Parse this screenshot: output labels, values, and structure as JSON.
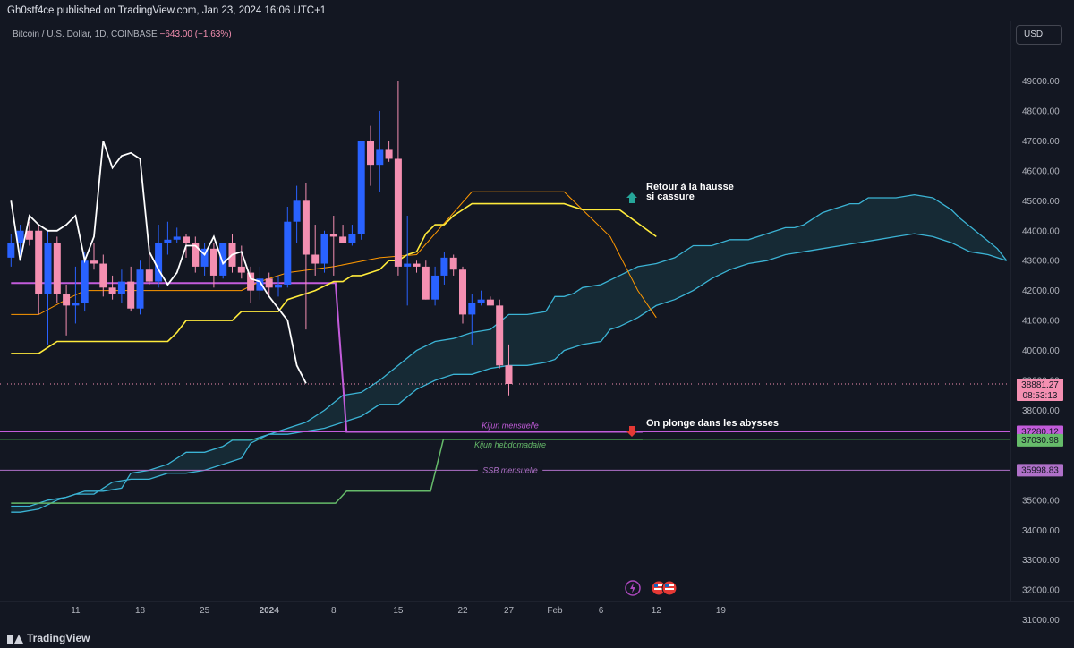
{
  "header": {
    "publisher": "Gh0stf4ce published on TradingView.com, Jan 23, 2024 16:06 UTC+1",
    "symbol": "Bitcoin / U.S. Dollar, 1D, COINBASE",
    "change": "−643.00 (−1.63%)"
  },
  "footer": {
    "logo": "TradingView"
  },
  "toolbar": {
    "currency": "USD"
  },
  "colors": {
    "background": "#131722",
    "up": "#2962ff",
    "down": "#f48fb1",
    "tenkan": "#ffeb3b",
    "kijun_orange": "#ff9800",
    "lagging": "#ffffff",
    "cloud_edge": "#3bb3d4",
    "monthly_kijun": "#c35cdb",
    "weekly_kijun": "#66bb6a",
    "ssb": "#b071c9"
  },
  "chart_data": {
    "type": "candlestick",
    "ylim": [
      30600,
      49400
    ],
    "y_ticks": [
      "49000.00",
      "48000.00",
      "47000.00",
      "46000.00",
      "45000.00",
      "44000.00",
      "43000.00",
      "42000.00",
      "41000.00",
      "40000.00",
      "39000.00",
      "38000.00",
      "37000.00",
      "36000.00",
      "35000.00",
      "34000.00",
      "33000.00",
      "32000.00",
      "31000.00"
    ],
    "x_ticks": [
      {
        "i": 7,
        "label": "11"
      },
      {
        "i": 14,
        "label": "18"
      },
      {
        "i": 21,
        "label": "25"
      },
      {
        "i": 28,
        "label": "2024"
      },
      {
        "i": 35,
        "label": "8"
      },
      {
        "i": 42,
        "label": "15"
      },
      {
        "i": 49,
        "label": "22"
      },
      {
        "i": 54,
        "label": "27"
      },
      {
        "i": 59,
        "label": "Feb"
      },
      {
        "i": 64,
        "label": "6"
      },
      {
        "i": 70,
        "label": "12"
      },
      {
        "i": 77,
        "label": "19"
      }
    ],
    "candles": [
      {
        "o": 43100,
        "h": 43900,
        "l": 42800,
        "c": 43600
      },
      {
        "o": 43600,
        "h": 44200,
        "l": 43000,
        "c": 44000
      },
      {
        "o": 44000,
        "h": 44300,
        "l": 43500,
        "c": 43700
      },
      {
        "o": 44000,
        "h": 44200,
        "l": 41200,
        "c": 41900
      },
      {
        "o": 41900,
        "h": 44000,
        "l": 40200,
        "c": 43600
      },
      {
        "o": 43600,
        "h": 43800,
        "l": 41600,
        "c": 41900
      },
      {
        "o": 41900,
        "h": 42200,
        "l": 40500,
        "c": 41500
      },
      {
        "o": 41500,
        "h": 42800,
        "l": 40900,
        "c": 41600
      },
      {
        "o": 41600,
        "h": 43300,
        "l": 41300,
        "c": 43000
      },
      {
        "o": 43000,
        "h": 43600,
        "l": 42700,
        "c": 42900
      },
      {
        "o": 42900,
        "h": 43200,
        "l": 41800,
        "c": 42100
      },
      {
        "o": 42100,
        "h": 42500,
        "l": 41700,
        "c": 41900
      },
      {
        "o": 41900,
        "h": 42700,
        "l": 41600,
        "c": 42300
      },
      {
        "o": 42300,
        "h": 42800,
        "l": 41300,
        "c": 41400
      },
      {
        "o": 41400,
        "h": 43000,
        "l": 41200,
        "c": 42700
      },
      {
        "o": 42700,
        "h": 43500,
        "l": 42200,
        "c": 42300
      },
      {
        "o": 42300,
        "h": 44200,
        "l": 42100,
        "c": 43600
      },
      {
        "o": 43600,
        "h": 44300,
        "l": 43200,
        "c": 43700
      },
      {
        "o": 43700,
        "h": 44100,
        "l": 43600,
        "c": 43800
      },
      {
        "o": 43800,
        "h": 43900,
        "l": 43100,
        "c": 43600
      },
      {
        "o": 43600,
        "h": 43800,
        "l": 42600,
        "c": 42800
      },
      {
        "o": 42800,
        "h": 43600,
        "l": 42500,
        "c": 43400
      },
      {
        "o": 43400,
        "h": 43600,
        "l": 42100,
        "c": 42500
      },
      {
        "o": 42500,
        "h": 43600,
        "l": 42400,
        "c": 43600
      },
      {
        "o": 43600,
        "h": 43900,
        "l": 42600,
        "c": 42800
      },
      {
        "o": 42800,
        "h": 43500,
        "l": 42400,
        "c": 42600
      },
      {
        "o": 42600,
        "h": 42800,
        "l": 41600,
        "c": 42000
      },
      {
        "o": 42000,
        "h": 42800,
        "l": 41700,
        "c": 42400
      },
      {
        "o": 42400,
        "h": 42600,
        "l": 41800,
        "c": 42100
      },
      {
        "o": 42100,
        "h": 42500,
        "l": 41800,
        "c": 42200
      },
      {
        "o": 42200,
        "h": 44800,
        "l": 42100,
        "c": 44300
      },
      {
        "o": 44300,
        "h": 45500,
        "l": 43600,
        "c": 45000
      },
      {
        "o": 45000,
        "h": 45600,
        "l": 40700,
        "c": 43200
      },
      {
        "o": 43200,
        "h": 44200,
        "l": 42500,
        "c": 42900
      },
      {
        "o": 42900,
        "h": 44000,
        "l": 42600,
        "c": 43900
      },
      {
        "o": 43900,
        "h": 44500,
        "l": 42500,
        "c": 43800
      },
      {
        "o": 43800,
        "h": 44200,
        "l": 43600,
        "c": 43600
      },
      {
        "o": 43600,
        "h": 44200,
        "l": 43500,
        "c": 43900
      },
      {
        "o": 43900,
        "h": 47000,
        "l": 43700,
        "c": 47000
      },
      {
        "o": 47000,
        "h": 47500,
        "l": 45500,
        "c": 46200
      },
      {
        "o": 46200,
        "h": 48000,
        "l": 45300,
        "c": 46700
      },
      {
        "o": 46700,
        "h": 47000,
        "l": 46300,
        "c": 46400
      },
      {
        "o": 46400,
        "h": 49000,
        "l": 42500,
        "c": 42800
      },
      {
        "o": 42800,
        "h": 44500,
        "l": 41500,
        "c": 42900
      },
      {
        "o": 42900,
        "h": 43000,
        "l": 42600,
        "c": 42800
      },
      {
        "o": 42800,
        "h": 43000,
        "l": 41700,
        "c": 41700
      },
      {
        "o": 41700,
        "h": 42800,
        "l": 41500,
        "c": 42500
      },
      {
        "o": 42500,
        "h": 43300,
        "l": 42200,
        "c": 43100
      },
      {
        "o": 43100,
        "h": 43200,
        "l": 42500,
        "c": 42700
      },
      {
        "o": 42700,
        "h": 42800,
        "l": 40900,
        "c": 41200
      },
      {
        "o": 41200,
        "h": 41900,
        "l": 40200,
        "c": 41600
      },
      {
        "o": 41600,
        "h": 42000,
        "l": 41500,
        "c": 41700
      },
      {
        "o": 41700,
        "h": 41800,
        "l": 41500,
        "c": 41500
      },
      {
        "o": 41500,
        "h": 41700,
        "l": 39400,
        "c": 39500
      },
      {
        "o": 39500,
        "h": 40200,
        "l": 38500,
        "c": 38881
      }
    ],
    "lines": {
      "tenkan": [
        [
          0,
          39900
        ],
        [
          3,
          39900
        ],
        [
          4,
          40100
        ],
        [
          5,
          40300
        ],
        [
          17,
          40300
        ],
        [
          18,
          40600
        ],
        [
          19,
          41000
        ],
        [
          24,
          41000
        ],
        [
          25,
          41300
        ],
        [
          29,
          41300
        ],
        [
          30,
          41700
        ],
        [
          32,
          41900
        ],
        [
          33,
          42000
        ],
        [
          35,
          42300
        ],
        [
          36,
          42300
        ],
        [
          37,
          42500
        ],
        [
          38,
          42500
        ],
        [
          40,
          42700
        ],
        [
          41,
          43000
        ],
        [
          42,
          43000
        ],
        [
          43,
          43200
        ],
        [
          44,
          43300
        ],
        [
          45,
          43900
        ],
        [
          46,
          44200
        ],
        [
          47,
          44200
        ],
        [
          48,
          44500
        ],
        [
          50,
          44900
        ],
        [
          60,
          44900
        ],
        [
          62,
          44700
        ],
        [
          66,
          44700
        ],
        [
          70,
          43800
        ]
      ],
      "kijun": [
        [
          0,
          41200
        ],
        [
          3,
          41200
        ],
        [
          6,
          41700
        ],
        [
          8,
          42000
        ],
        [
          25,
          42000
        ],
        [
          27,
          42300
        ],
        [
          30,
          42600
        ],
        [
          35,
          42800
        ],
        [
          40,
          43100
        ],
        [
          44,
          43200
        ],
        [
          50,
          45300
        ],
        [
          60,
          45300
        ],
        [
          65,
          43800
        ],
        [
          68,
          42000
        ],
        [
          70,
          41100
        ]
      ],
      "lagging": [
        [
          0,
          45000
        ],
        [
          1,
          43000
        ],
        [
          2,
          44500
        ],
        [
          3,
          44200
        ],
        [
          4,
          44000
        ],
        [
          5,
          44000
        ],
        [
          6,
          44200
        ],
        [
          7,
          44500
        ],
        [
          8,
          43000
        ],
        [
          9,
          43800
        ],
        [
          10,
          47000
        ],
        [
          11,
          46100
        ],
        [
          12,
          46500
        ],
        [
          13,
          46600
        ],
        [
          14,
          46400
        ],
        [
          15,
          43300
        ],
        [
          16,
          42700
        ],
        [
          17,
          42200
        ],
        [
          18,
          42600
        ],
        [
          19,
          43500
        ],
        [
          20,
          43500
        ],
        [
          21,
          43200
        ],
        [
          22,
          43800
        ],
        [
          23,
          42900
        ],
        [
          24,
          43200
        ],
        [
          25,
          43300
        ],
        [
          26,
          42400
        ],
        [
          27,
          42300
        ],
        [
          28,
          41800
        ],
        [
          29,
          41400
        ],
        [
          30,
          41000
        ],
        [
          31,
          39500
        ],
        [
          32,
          38900
        ]
      ],
      "cloud_a": [
        [
          0,
          34800
        ],
        [
          2,
          34800
        ],
        [
          4,
          35000
        ],
        [
          6,
          35100
        ],
        [
          8,
          35300
        ],
        [
          10,
          35300
        ],
        [
          12,
          35400
        ],
        [
          13,
          35900
        ],
        [
          15,
          36000
        ],
        [
          17,
          36200
        ],
        [
          19,
          36600
        ],
        [
          21,
          36600
        ],
        [
          23,
          36800
        ],
        [
          24,
          37000
        ],
        [
          26,
          37000
        ],
        [
          28,
          37200
        ],
        [
          30,
          37400
        ],
        [
          32,
          37600
        ],
        [
          34,
          38000
        ],
        [
          36,
          38500
        ],
        [
          38,
          38600
        ],
        [
          40,
          39000
        ],
        [
          42,
          39500
        ],
        [
          44,
          40000
        ],
        [
          46,
          40300
        ],
        [
          48,
          40400
        ],
        [
          50,
          40600
        ],
        [
          52,
          40700
        ],
        [
          54,
          41200
        ],
        [
          56,
          41200
        ],
        [
          58,
          41300
        ],
        [
          59,
          41800
        ],
        [
          60,
          41800
        ],
        [
          61,
          41900
        ],
        [
          62,
          42100
        ],
        [
          64,
          42200
        ],
        [
          66,
          42500
        ],
        [
          68,
          42800
        ],
        [
          70,
          42900
        ],
        [
          72,
          43100
        ],
        [
          74,
          43500
        ],
        [
          76,
          43500
        ],
        [
          78,
          43700
        ],
        [
          80,
          43700
        ],
        [
          82,
          43900
        ],
        [
          84,
          44100
        ],
        [
          85,
          44100
        ],
        [
          86,
          44200
        ],
        [
          87,
          44400
        ],
        [
          88,
          44600
        ],
        [
          89,
          44700
        ],
        [
          90,
          44800
        ],
        [
          91,
          44900
        ],
        [
          92,
          44900
        ],
        [
          93,
          45100
        ],
        [
          96,
          45100
        ],
        [
          98,
          45200
        ],
        [
          100,
          45100
        ],
        [
          102,
          44700
        ],
        [
          103,
          44400
        ],
        [
          105,
          43900
        ],
        [
          107,
          43400
        ],
        [
          108,
          43000
        ]
      ],
      "cloud_b": [
        [
          0,
          34600
        ],
        [
          1,
          34600
        ],
        [
          3,
          34700
        ],
        [
          5,
          35000
        ],
        [
          7,
          35200
        ],
        [
          9,
          35200
        ],
        [
          11,
          35600
        ],
        [
          13,
          35700
        ],
        [
          15,
          35700
        ],
        [
          17,
          35900
        ],
        [
          19,
          35900
        ],
        [
          21,
          36000
        ],
        [
          23,
          36200
        ],
        [
          25,
          36400
        ],
        [
          26,
          36900
        ],
        [
          28,
          37200
        ],
        [
          30,
          37200
        ],
        [
          32,
          37300
        ],
        [
          34,
          37400
        ],
        [
          36,
          37600
        ],
        [
          38,
          37800
        ],
        [
          40,
          38200
        ],
        [
          42,
          38200
        ],
        [
          44,
          38700
        ],
        [
          46,
          39000
        ],
        [
          48,
          39200
        ],
        [
          50,
          39200
        ],
        [
          52,
          39400
        ],
        [
          54,
          39500
        ],
        [
          56,
          39500
        ],
        [
          58,
          39600
        ],
        [
          59,
          39700
        ],
        [
          60,
          40000
        ],
        [
          61,
          40100
        ],
        [
          62,
          40200
        ],
        [
          64,
          40300
        ],
        [
          65,
          40700
        ],
        [
          66,
          40800
        ],
        [
          68,
          41100
        ],
        [
          70,
          41500
        ],
        [
          72,
          41700
        ],
        [
          74,
          42000
        ],
        [
          76,
          42400
        ],
        [
          78,
          42700
        ],
        [
          80,
          42900
        ],
        [
          82,
          43000
        ],
        [
          84,
          43200
        ],
        [
          86,
          43300
        ],
        [
          88,
          43400
        ],
        [
          90,
          43500
        ],
        [
          92,
          43600
        ],
        [
          94,
          43700
        ],
        [
          96,
          43800
        ],
        [
          98,
          43900
        ],
        [
          100,
          43800
        ],
        [
          102,
          43600
        ],
        [
          104,
          43300
        ],
        [
          106,
          43200
        ],
        [
          108,
          43000
        ]
      ]
    },
    "levels": [
      {
        "label": "Kijun mensuelle",
        "value": 37280.12,
        "price_label": "37280.12",
        "bg": "#c35cdb"
      },
      {
        "label": "Kijun hebdomadaire",
        "value": 37030.98,
        "price_label": "37030.98",
        "bg": "#66bb6a"
      },
      {
        "label": "SSB mensuelle",
        "value": 35998.83,
        "price_label": "35998.83",
        "bg": "#b071c9"
      }
    ],
    "last_price": {
      "value": 38881.27,
      "label": "38881.27",
      "countdown": "08:53:13",
      "bg": "#f48fb1"
    },
    "annotations": [
      {
        "id": "up",
        "text1": "Retour à la hausse",
        "text2": "si cassure"
      },
      {
        "id": "down",
        "text1": "On plonge dans les abysses"
      }
    ]
  }
}
